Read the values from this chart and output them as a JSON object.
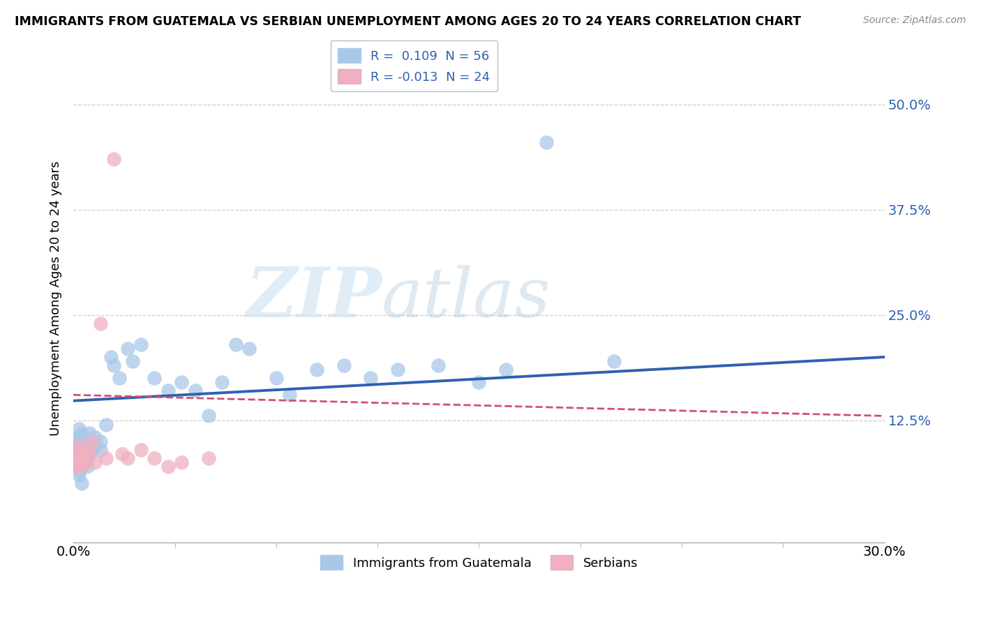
{
  "title": "IMMIGRANTS FROM GUATEMALA VS SERBIAN UNEMPLOYMENT AMONG AGES 20 TO 24 YEARS CORRELATION CHART",
  "source": "Source: ZipAtlas.com",
  "ylabel": "Unemployment Among Ages 20 to 24 years",
  "xlim": [
    0.0,
    0.3
  ],
  "ylim": [
    -0.02,
    0.56
  ],
  "yticks": [
    0.0,
    0.125,
    0.25,
    0.375,
    0.5
  ],
  "ytick_labels": [
    "",
    "12.5%",
    "25.0%",
    "37.5%",
    "50.0%"
  ],
  "xticks": [
    0.0,
    0.3
  ],
  "xtick_labels": [
    "0.0%",
    "30.0%"
  ],
  "legend_labels": [
    "Immigrants from Guatemala",
    "Serbians"
  ],
  "r_guatemala": 0.109,
  "n_guatemala": 56,
  "r_serbian": -0.013,
  "n_serbian": 24,
  "color_guatemala": "#a8c8e8",
  "color_serbian": "#f0b0c0",
  "line_color_guatemala": "#3060b0",
  "line_color_serbian": "#d05070",
  "watermark_zip": "ZIP",
  "watermark_atlas": "atlas",
  "guatemala_x": [
    0.001,
    0.001,
    0.001,
    0.001,
    0.002,
    0.002,
    0.002,
    0.002,
    0.002,
    0.002,
    0.002,
    0.003,
    0.003,
    0.003,
    0.003,
    0.003,
    0.004,
    0.004,
    0.004,
    0.005,
    0.005,
    0.005,
    0.005,
    0.006,
    0.006,
    0.007,
    0.008,
    0.008,
    0.01,
    0.01,
    0.012,
    0.014,
    0.015,
    0.017,
    0.02,
    0.022,
    0.025,
    0.03,
    0.035,
    0.04,
    0.045,
    0.05,
    0.055,
    0.06,
    0.065,
    0.075,
    0.08,
    0.09,
    0.1,
    0.11,
    0.12,
    0.135,
    0.15,
    0.16,
    0.175,
    0.2
  ],
  "guatemala_y": [
    0.1,
    0.09,
    0.08,
    0.07,
    0.095,
    0.085,
    0.075,
    0.105,
    0.115,
    0.065,
    0.06,
    0.07,
    0.095,
    0.08,
    0.11,
    0.05,
    0.075,
    0.085,
    0.09,
    0.095,
    0.08,
    0.1,
    0.07,
    0.085,
    0.11,
    0.09,
    0.095,
    0.105,
    0.09,
    0.1,
    0.12,
    0.2,
    0.19,
    0.175,
    0.21,
    0.195,
    0.215,
    0.175,
    0.16,
    0.17,
    0.16,
    0.13,
    0.17,
    0.215,
    0.21,
    0.175,
    0.155,
    0.185,
    0.19,
    0.175,
    0.185,
    0.19,
    0.17,
    0.185,
    0.455,
    0.195
  ],
  "serbian_x": [
    0.001,
    0.001,
    0.001,
    0.002,
    0.002,
    0.002,
    0.003,
    0.003,
    0.004,
    0.004,
    0.005,
    0.006,
    0.007,
    0.008,
    0.01,
    0.012,
    0.015,
    0.018,
    0.02,
    0.025,
    0.03,
    0.035,
    0.04,
    0.05
  ],
  "serbian_y": [
    0.08,
    0.09,
    0.07,
    0.075,
    0.085,
    0.095,
    0.08,
    0.07,
    0.075,
    0.085,
    0.08,
    0.09,
    0.1,
    0.075,
    0.24,
    0.08,
    0.435,
    0.085,
    0.08,
    0.09,
    0.08,
    0.07,
    0.075,
    0.08
  ],
  "g_line_x0": 0.0,
  "g_line_y0": 0.148,
  "g_line_x1": 0.3,
  "g_line_y1": 0.2,
  "s_line_x0": 0.0,
  "s_line_y0": 0.155,
  "s_line_x1": 0.3,
  "s_line_y1": 0.13
}
